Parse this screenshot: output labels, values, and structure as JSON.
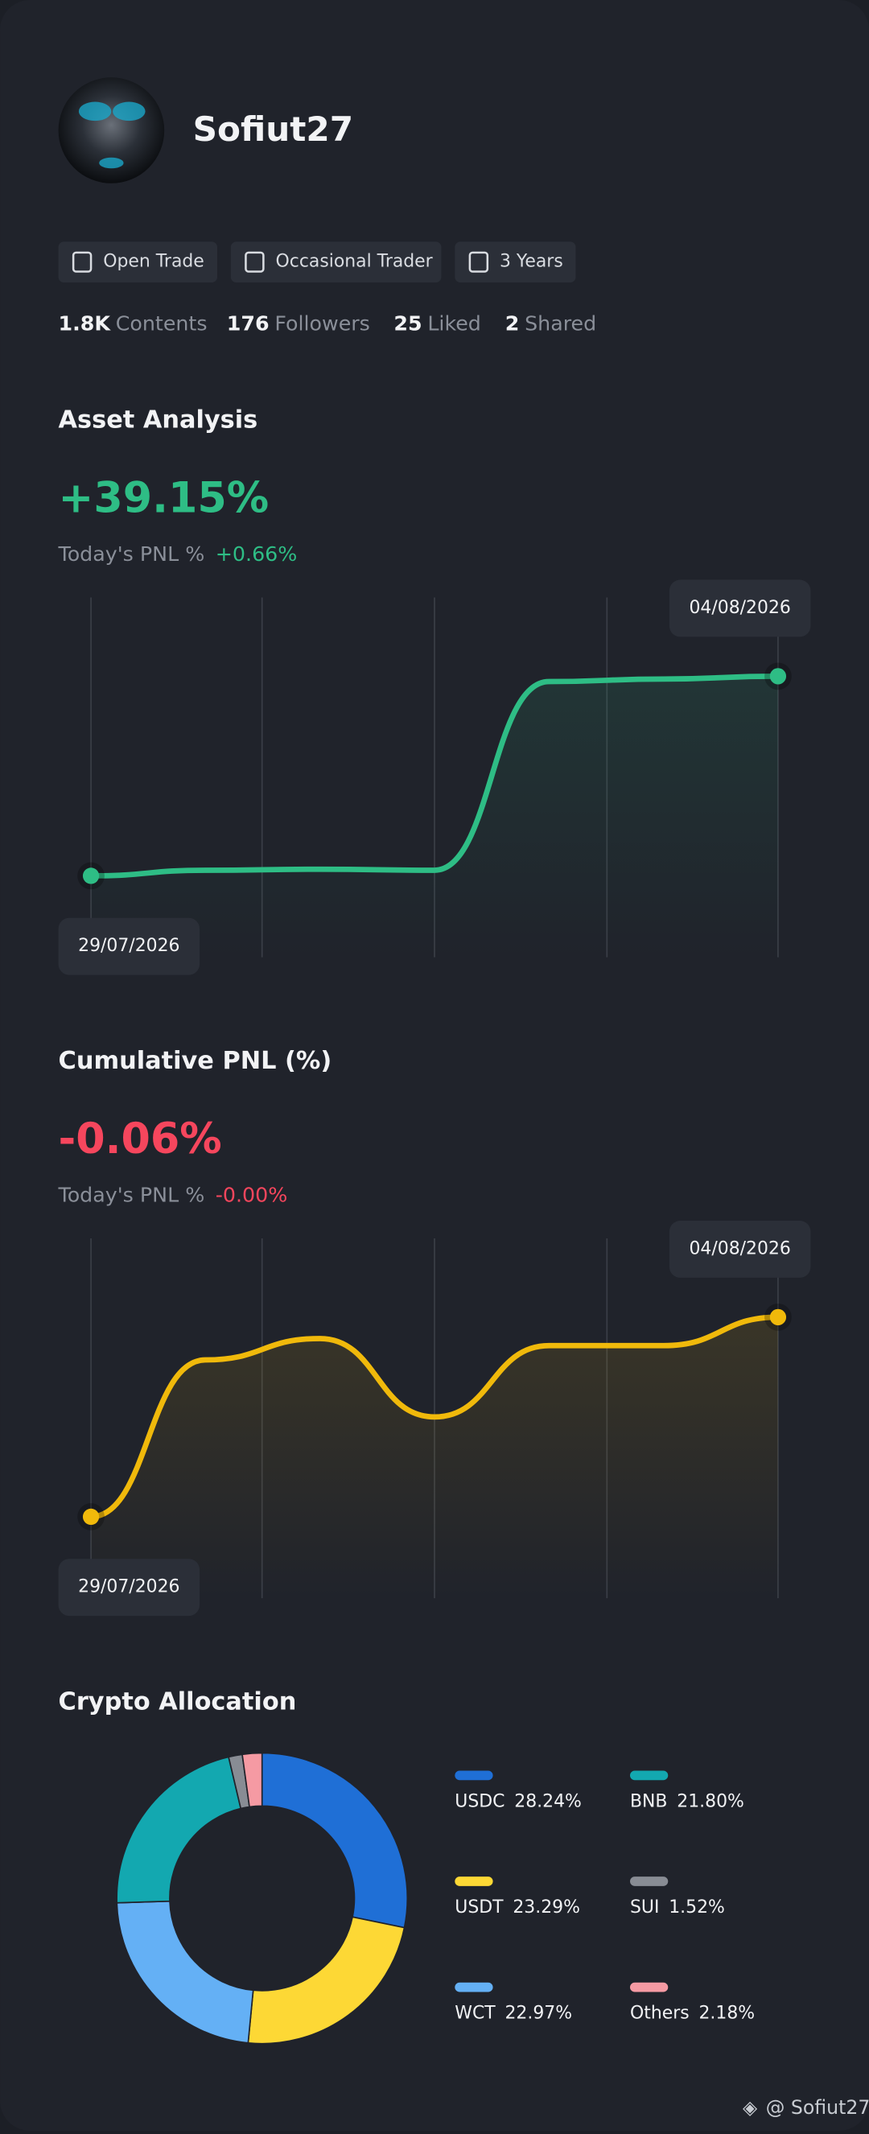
{
  "profile": {
    "name": "Sofiut27",
    "badges": [
      "Open Trade",
      "Occasional Trader",
      "3 Years"
    ],
    "stats": [
      {
        "value": "1.8K",
        "label": "Contents"
      },
      {
        "value": "176",
        "label": "Followers"
      },
      {
        "value": "25",
        "label": "Liked"
      },
      {
        "value": "2",
        "label": "Shared"
      }
    ]
  },
  "watermark": "@ Sofiut27",
  "chart_data": [
    {
      "type": "line",
      "title": "Asset Analysis",
      "headline": "+39.15%",
      "subtitle": "Today's PNL %",
      "subtitle_value": "+0.66%",
      "accent": "#2ebd85",
      "categories": [
        "29/07/2026",
        null,
        null,
        null,
        null,
        null,
        "04/08/2026"
      ],
      "series": [
        {
          "color": "#2ebd85",
          "values": [
            0,
            1.1,
            1.3,
            1.1,
            38.1,
            38.6,
            39.15
          ]
        }
      ]
    },
    {
      "type": "line",
      "title": "Cumulative PNL (%)",
      "headline": "-0.06%",
      "subtitle": "Today's PNL %",
      "subtitle_value": "-0.00%",
      "accent": "#f6465d",
      "categories": [
        "29/07/2026",
        null,
        null,
        null,
        null,
        null,
        "04/08/2026"
      ],
      "series": [
        {
          "color": "#f0b90b",
          "values": [
            -0.2,
            -0.09,
            -0.075,
            -0.13,
            -0.08,
            -0.08,
            -0.06
          ]
        }
      ]
    },
    {
      "type": "pie",
      "title": "Crypto Allocation",
      "categories": [
        "USDC",
        "USDT",
        "WCT",
        "BNB",
        "SUI",
        "Others"
      ],
      "values": [
        28.24,
        23.29,
        22.97,
        21.8,
        1.52,
        2.18
      ],
      "value_labels": [
        "28.24%",
        "23.29%",
        "22.97%",
        "21.80%",
        "1.52%",
        "2.18%"
      ],
      "colors": [
        "#1f6fd6",
        "#fdd835",
        "#64b0f5",
        "#13a8b0",
        "#888c94",
        "#f59aa3"
      ]
    }
  ]
}
